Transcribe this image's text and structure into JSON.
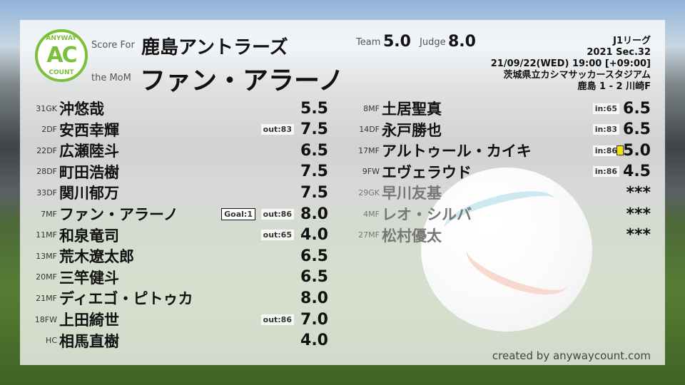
{
  "header": {
    "score_for_label": "Score For",
    "team": "鹿島アントラーズ",
    "mom_label": "the MoM",
    "mom": "ファン・アラーノ",
    "team_label": "Team",
    "team_score": "5.0",
    "judge_label": "Judge",
    "judge_score": "8.0"
  },
  "logo": {
    "top": "ANYWAY",
    "center": "AC",
    "bottom": "COUNT"
  },
  "match": {
    "league": "J1リーグ",
    "section": "2021 Sec.32",
    "datetime": "21/09/22(WED) 19:00 [+09:00]",
    "stadium": "茨城県立カシマサッカースタジアム",
    "result": "鹿島 1 - 2 川崎F"
  },
  "left": [
    {
      "num": "31",
      "pos": "GK",
      "name": "沖悠哉",
      "score": "5.5"
    },
    {
      "num": "2",
      "pos": "DF",
      "name": "安西幸輝",
      "score": "7.5",
      "sub": "out:83"
    },
    {
      "num": "22",
      "pos": "DF",
      "name": "広瀬陸斗",
      "score": "6.5"
    },
    {
      "num": "28",
      "pos": "DF",
      "name": "町田浩樹",
      "score": "7.5"
    },
    {
      "num": "33",
      "pos": "DF",
      "name": "関川郁万",
      "score": "7.5"
    },
    {
      "num": "7",
      "pos": "MF",
      "name": "ファン・アラーノ",
      "score": "8.0",
      "sub": "out:86",
      "goal": "Goal:1"
    },
    {
      "num": "11",
      "pos": "MF",
      "name": "和泉竜司",
      "score": "4.0",
      "sub": "out:65"
    },
    {
      "num": "13",
      "pos": "MF",
      "name": "荒木遼太郎",
      "score": "6.5"
    },
    {
      "num": "20",
      "pos": "MF",
      "name": "三竿健斗",
      "score": "6.5"
    },
    {
      "num": "21",
      "pos": "MF",
      "name": "ディエゴ・ピトゥカ",
      "score": "8.0"
    },
    {
      "num": "18",
      "pos": "FW",
      "name": "上田綺世",
      "score": "7.0",
      "sub": "out:86"
    },
    {
      "num": "",
      "pos": "HC",
      "name": "相馬直樹",
      "score": "4.0"
    }
  ],
  "right": [
    {
      "num": "8",
      "pos": "MF",
      "name": "土居聖真",
      "score": "6.5",
      "sub": "in:65"
    },
    {
      "num": "14",
      "pos": "DF",
      "name": "永戸勝也",
      "score": "6.5",
      "sub": "in:83"
    },
    {
      "num": "17",
      "pos": "MF",
      "name": "アルトゥール・カイキ",
      "score": "5.0",
      "sub": "in:86",
      "card": "yellow"
    },
    {
      "num": "9",
      "pos": "FW",
      "name": "エヴェラウド",
      "score": "4.5",
      "sub": "in:86"
    },
    {
      "num": "29",
      "pos": "GK",
      "name": "早川友基",
      "score": "***",
      "unused": true
    },
    {
      "num": "4",
      "pos": "MF",
      "name": "レオ・シルバ",
      "score": "***",
      "unused": true
    },
    {
      "num": "27",
      "pos": "MF",
      "name": "松村優太",
      "score": "***",
      "unused": true
    }
  ],
  "footer": {
    "credit": "created by anywaycount.com"
  },
  "colors": {
    "brand": "#7bbf3a",
    "yellow_card": "#f4e600"
  }
}
